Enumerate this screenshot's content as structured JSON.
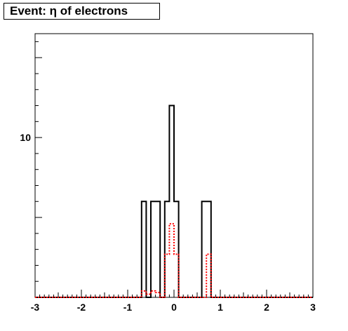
{
  "chart_data": {
    "type": "histogram",
    "title": "Event: η of electrons",
    "xlabel": "",
    "ylabel": "",
    "xlim": [
      -3,
      3
    ],
    "ylim": [
      0,
      16.5
    ],
    "x_ticks": [
      "-3",
      "-2",
      "-1",
      "0",
      "1",
      "2",
      "3"
    ],
    "y_ticks": [
      "10"
    ],
    "y_tick_values": [
      10
    ],
    "bin_edges": [
      -3.0,
      -2.9,
      -2.8,
      -2.7,
      -2.6,
      -2.5,
      -2.4,
      -2.3,
      -2.2,
      -2.1,
      -2.0,
      -1.9,
      -1.8,
      -1.7,
      -1.6,
      -1.5,
      -1.4,
      -1.3,
      -1.2,
      -1.1,
      -1.0,
      -0.9,
      -0.8,
      -0.7,
      -0.6,
      -0.5,
      -0.4,
      -0.3,
      -0.2,
      -0.1,
      0.0,
      0.1,
      0.2,
      0.3,
      0.4,
      0.5,
      0.6,
      0.7,
      0.8,
      0.9,
      1.0,
      1.1,
      1.2,
      1.3,
      1.4,
      1.5,
      1.6,
      1.7,
      1.8,
      1.9,
      2.0,
      2.1,
      2.2,
      2.3,
      2.4,
      2.5,
      2.6,
      2.7,
      2.8,
      2.9,
      3.0
    ],
    "series": [
      {
        "style": "solid",
        "color": "#000000",
        "values": [
          0,
          0,
          0,
          0,
          0,
          0,
          0,
          0,
          0,
          0,
          0,
          0,
          0,
          0,
          0,
          0,
          0,
          0,
          0,
          0,
          0,
          0,
          0,
          6,
          0,
          6,
          6,
          0,
          6,
          12,
          6,
          0,
          0,
          0,
          0,
          0,
          6,
          6,
          0,
          0,
          0,
          0,
          0,
          0,
          0,
          0,
          0,
          0,
          0,
          0,
          0,
          0,
          0,
          0,
          0,
          0,
          0,
          0,
          0,
          0
        ]
      },
      {
        "style": "dotted",
        "color": "#ff0000",
        "values": [
          0,
          0,
          0,
          0,
          0,
          0,
          0,
          0,
          0,
          0,
          0,
          0,
          0,
          0,
          0,
          0,
          0,
          0,
          0,
          0,
          0,
          0,
          0,
          0.4,
          0.2,
          0.4,
          0.3,
          0,
          2.7,
          4.6,
          2.7,
          0,
          0,
          0,
          0,
          0,
          0,
          2.7,
          0,
          0,
          0,
          0,
          0,
          0,
          0,
          0,
          0,
          0,
          0,
          0,
          0,
          0,
          0,
          0,
          0,
          0,
          0,
          0,
          0,
          0
        ]
      }
    ],
    "grid": false,
    "legend": "none"
  }
}
